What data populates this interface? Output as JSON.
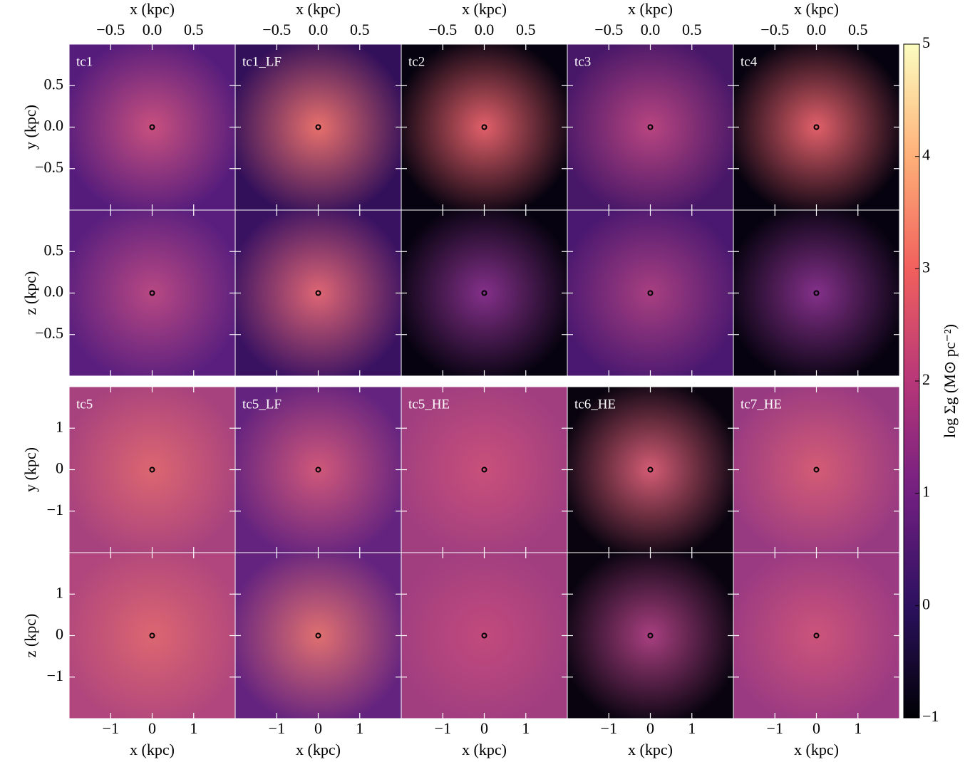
{
  "chart_data": {
    "type": "image-grid",
    "blocks": [
      {
        "xlabel": "x (kpc)",
        "xlim": [
          -1,
          1
        ],
        "xticks": [
          {
            "value": -0.5,
            "label": "−0.5"
          },
          {
            "value": 0,
            "label": "0.0"
          },
          0.5
        ],
        "ylim": [
          -1,
          1
        ],
        "yticks": [
          {
            "value": -0.5,
            "label": "−0.5"
          },
          {
            "value": 0,
            "label": "0.0"
          },
          0.5
        ],
        "rows": [
          {
            "ylabel": "y (kpc)",
            "panels": [
              {
                "name": "tc1",
                "colors": [
                  "#551c7c",
                  "#c8507f"
                ]
              },
              {
                "name": "tc1_LF",
                "colors": [
                  "#33105a",
                  "#e8706c"
                ]
              },
              {
                "name": "tc2",
                "colors": [
                  "#06020f",
                  "#e2606a"
                ]
              },
              {
                "name": "tc3",
                "colors": [
                  "#471768",
                  "#b84580"
                ]
              },
              {
                "name": "tc4",
                "colors": [
                  "#06020f",
                  "#e2606a"
                ]
              }
            ]
          },
          {
            "ylabel": "z (kpc)",
            "panels": [
              {
                "colors": [
                  "#5a1f7e",
                  "#b84883"
                ]
              },
              {
                "colors": [
                  "#3a1262",
                  "#de6674"
                ]
              },
              {
                "colors": [
                  "#06020f",
                  "#84308a"
                ]
              },
              {
                "colors": [
                  "#4a1870",
                  "#a83f80"
                ]
              },
              {
                "colors": [
                  "#06020f",
                  "#84308a"
                ]
              }
            ]
          }
        ]
      },
      {
        "xlabel": "x (kpc)",
        "xlim": [
          -2,
          2
        ],
        "xticks": [
          {
            "value": -1,
            "label": "−1"
          },
          0,
          1
        ],
        "ylim": [
          -2,
          2
        ],
        "yticks": [
          {
            "value": -1,
            "label": "−1"
          },
          0,
          1
        ],
        "rows": [
          {
            "ylabel": "y (kpc)",
            "panels": [
              {
                "name": "tc5",
                "colors": [
                  "#a8427e",
                  "#dc6670"
                ]
              },
              {
                "name": "tc5_LF",
                "colors": [
                  "#64237f",
                  "#d0587a"
                ]
              },
              {
                "name": "tc5_HE",
                "colors": [
                  "#a03e80",
                  "#c9507a"
                ]
              },
              {
                "name": "tc6_HE",
                "colors": [
                  "#08030f",
                  "#d45c74"
                ]
              },
              {
                "name": "tc7_HE",
                "colors": [
                  "#983a82",
                  "#d45c75"
                ]
              }
            ]
          },
          {
            "ylabel": "z (kpc)",
            "panels": [
              {
                "colors": [
                  "#b0467d",
                  "#dc6670"
                ]
              },
              {
                "colors": [
                  "#64237f",
                  "#e07070"
                ]
              },
              {
                "colors": [
                  "#a03e80",
                  "#c24a7c"
                ]
              },
              {
                "colors": [
                  "#08030f",
                  "#a83f80"
                ]
              },
              {
                "colors": [
                  "#9a3a82",
                  "#cc547a"
                ]
              }
            ]
          }
        ]
      }
    ],
    "colorbar": {
      "label": "log Σg (M⊙ pc⁻²)",
      "lim": [
        -1,
        5
      ],
      "ticks": [
        {
          "value": -1,
          "label": "−1"
        },
        0,
        1,
        2,
        3,
        4,
        5
      ],
      "colormap": [
        "#000004",
        "#2c115f",
        "#721f81",
        "#b73779",
        "#f1605d",
        "#feb078",
        "#fcfdbf"
      ]
    }
  }
}
